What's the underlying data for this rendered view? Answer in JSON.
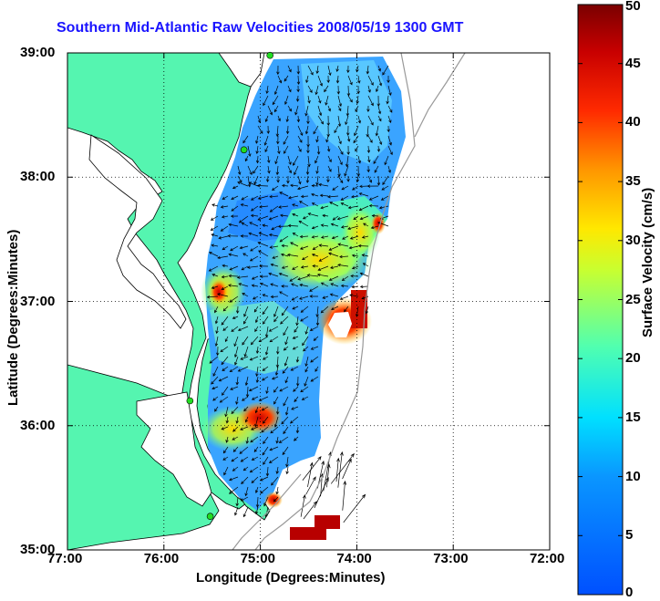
{
  "title": "Southern Mid-Atlantic Raw Velocities 2008/05/19 1300 GMT",
  "xlabel": "Longitude (Degrees:Minutes)",
  "ylabel": "Latitude (Degrees:Minutes)",
  "colorbar_label": "Surface Velocity (cm/s)",
  "colors": {
    "land": "#55f5b0",
    "title": "#1a14ff",
    "station": "#22dd22"
  },
  "map": {
    "x_ticks": [
      {
        "lon": -77,
        "label": "77:00"
      },
      {
        "lon": -76,
        "label": "76:00"
      },
      {
        "lon": -75,
        "label": "75:00"
      },
      {
        "lon": -74,
        "label": "74:00"
      },
      {
        "lon": -73,
        "label": "73:00"
      },
      {
        "lon": -72,
        "label": "72:00"
      }
    ],
    "y_ticks": [
      {
        "lat": 39,
        "label": "39:00"
      },
      {
        "lat": 38,
        "label": "38:00"
      },
      {
        "lat": 37,
        "label": "37:00"
      },
      {
        "lat": 36,
        "label": "36:00"
      },
      {
        "lat": 35,
        "label": "35:00"
      }
    ],
    "lon_range": [
      -77,
      -72
    ],
    "lat_range": [
      35,
      39
    ],
    "grid": "dotted",
    "stations": [
      {
        "lon": -74.9,
        "lat": 38.98
      },
      {
        "lon": -75.17,
        "lat": 38.22
      },
      {
        "lon": -75.73,
        "lat": 36.2
      },
      {
        "lon": -75.52,
        "lat": 35.27
      }
    ]
  },
  "colorbar": {
    "range": [
      0,
      50
    ],
    "ticks": [
      {
        "value": 50,
        "label": "50"
      },
      {
        "value": 45,
        "label": "45"
      },
      {
        "value": 40,
        "label": "40"
      },
      {
        "value": 35,
        "label": "35"
      },
      {
        "value": 30,
        "label": "30"
      },
      {
        "value": 25,
        "label": "25"
      },
      {
        "value": 20,
        "label": "20"
      },
      {
        "value": 15,
        "label": "15"
      },
      {
        "value": 10,
        "label": "10"
      },
      {
        "value": 5,
        "label": "5"
      },
      {
        "value": 0,
        "label": "0"
      }
    ]
  }
}
